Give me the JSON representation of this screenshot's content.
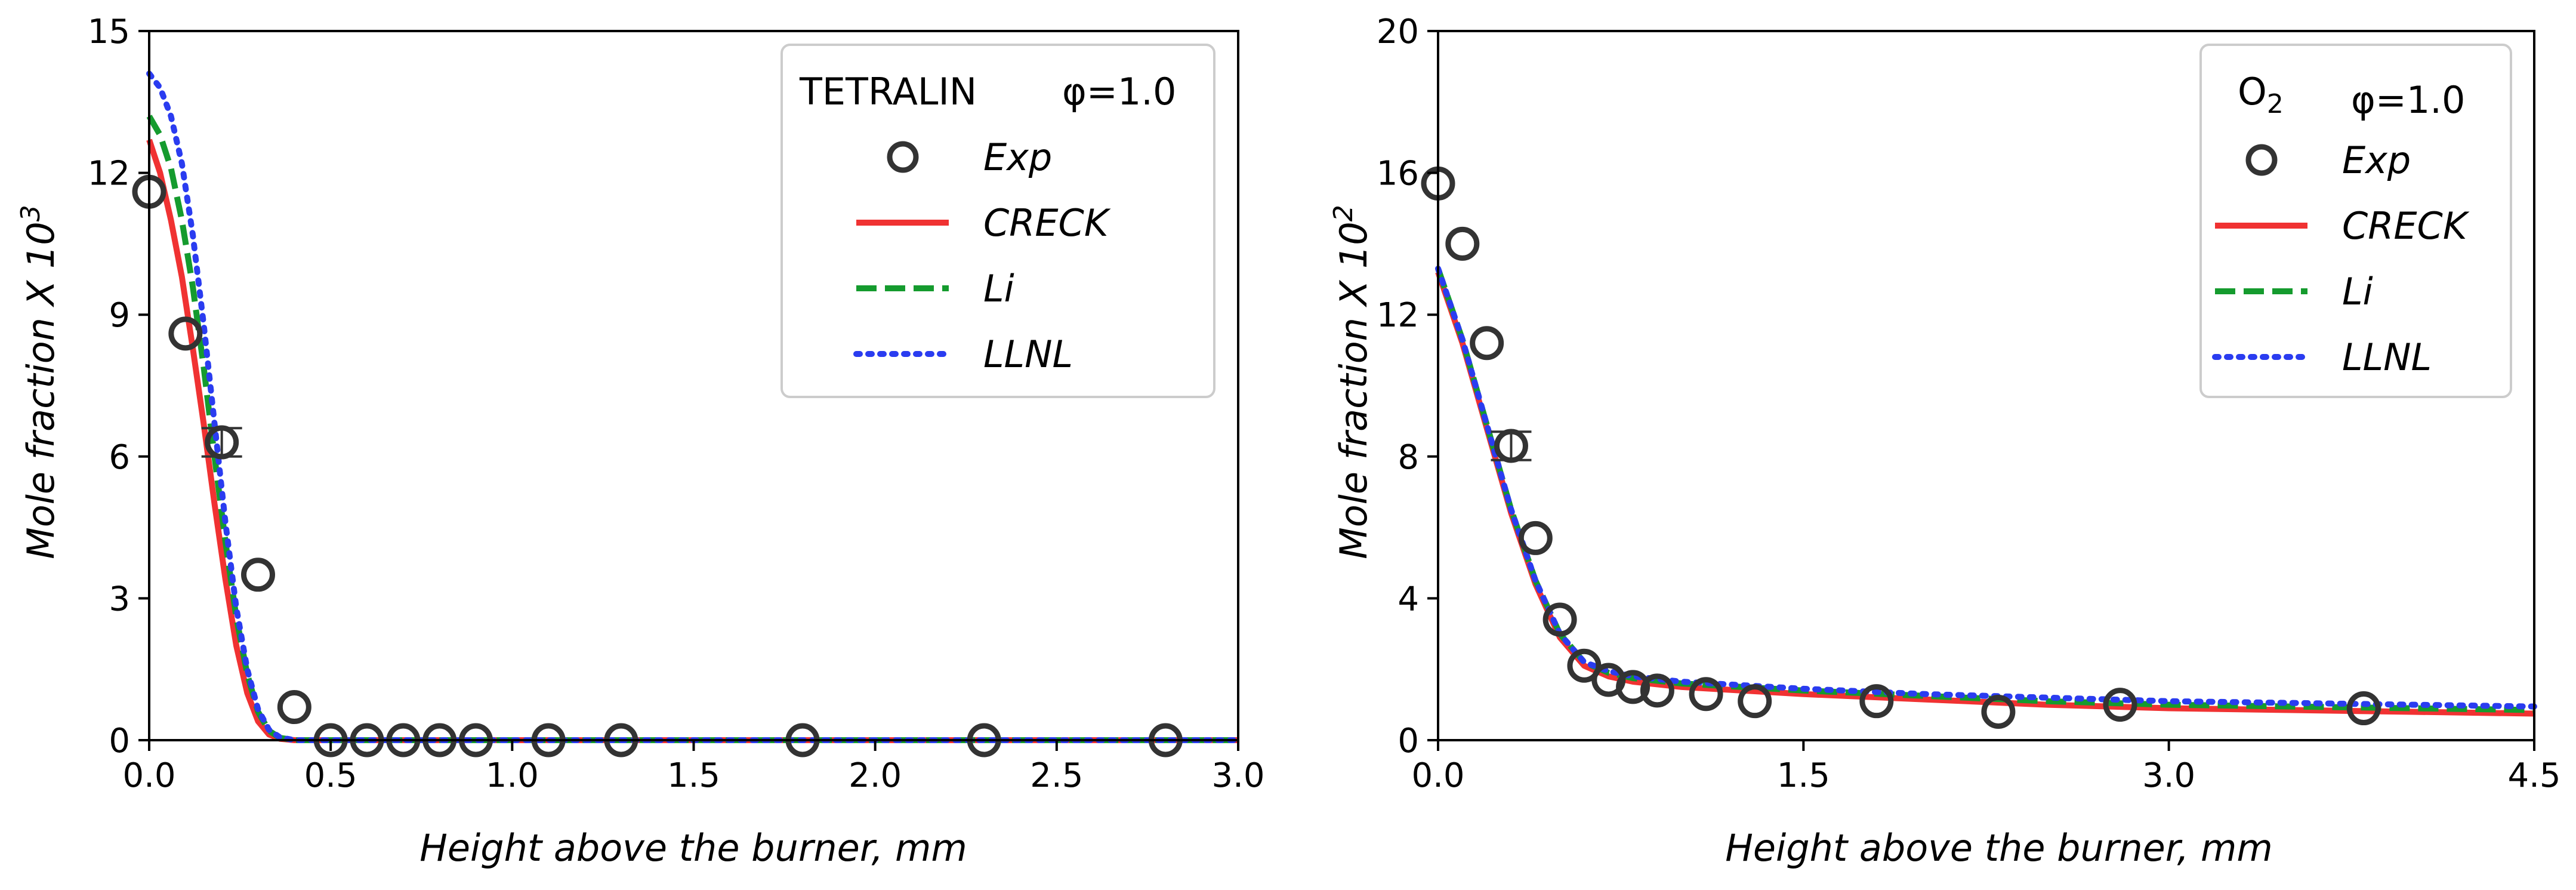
{
  "chart_data": [
    {
      "type": "line",
      "title": "",
      "xlabel": "Height above the burner, mm",
      "ylabel_prefix": "Mole fraction X 10",
      "ylabel_exp": "3",
      "xlim": [
        0,
        3.0
      ],
      "ylim": [
        0,
        15
      ],
      "xticks": [
        0.0,
        0.5,
        1.0,
        1.5,
        2.0,
        2.5,
        3.0
      ],
      "xtick_labels": [
        "0.0",
        "0.5",
        "1.0",
        "1.5",
        "2.0",
        "2.5",
        "3.0"
      ],
      "yticks": [
        0,
        3,
        6,
        9,
        12,
        15
      ],
      "ytick_labels": [
        "0",
        "3",
        "6",
        "9",
        "12",
        "15"
      ],
      "legend": {
        "title_species": "TETRALIN",
        "title_sub": "",
        "title_phi": "φ=1.0",
        "entries": [
          "Exp",
          "CRECK",
          "Li",
          "LLNL"
        ],
        "placement": "top-right"
      },
      "exp": {
        "name": "Exp",
        "x": [
          0.0,
          0.1,
          0.2,
          0.3,
          0.4,
          0.5,
          0.6,
          0.7,
          0.8,
          0.9,
          1.1,
          1.3,
          1.8,
          2.3,
          2.8
        ],
        "y": [
          11.6,
          8.6,
          6.3,
          3.5,
          0.7,
          0.0,
          0.0,
          0.0,
          0.0,
          0.0,
          0.0,
          0.0,
          0.0,
          0.0,
          0.0
        ],
        "errorbar_index": 2,
        "errorbar_low": 6.0,
        "errorbar_high": 6.6
      },
      "series": [
        {
          "name": "CRECK",
          "color": "#f03232",
          "style": "solid",
          "x": [
            0.0,
            0.03,
            0.06,
            0.09,
            0.12,
            0.15,
            0.18,
            0.21,
            0.24,
            0.27,
            0.3,
            0.33,
            0.36,
            0.4,
            0.5,
            0.7,
            1.0,
            1.5,
            2.0,
            2.5,
            3.0
          ],
          "y": [
            12.7,
            12.0,
            11.0,
            9.8,
            8.3,
            6.7,
            5.0,
            3.4,
            2.0,
            1.0,
            0.4,
            0.12,
            0.03,
            0.0,
            0.0,
            0.0,
            0.0,
            0.0,
            0.0,
            0.0,
            0.0
          ]
        },
        {
          "name": "Li",
          "color": "#159b2e",
          "style": "dashed",
          "x": [
            0.0,
            0.03,
            0.06,
            0.09,
            0.12,
            0.15,
            0.18,
            0.21,
            0.24,
            0.27,
            0.3,
            0.33,
            0.36,
            0.4,
            0.5,
            0.7,
            1.0,
            1.5,
            2.0,
            2.5,
            3.0
          ],
          "y": [
            13.2,
            12.8,
            12.1,
            11.0,
            9.6,
            7.9,
            6.0,
            4.2,
            2.6,
            1.4,
            0.6,
            0.2,
            0.05,
            0.0,
            0.0,
            0.0,
            0.0,
            0.0,
            0.0,
            0.0,
            0.0
          ]
        },
        {
          "name": "LLNL",
          "color": "#2a3cf0",
          "style": "dotted",
          "x": [
            0.0,
            0.03,
            0.06,
            0.09,
            0.12,
            0.15,
            0.18,
            0.21,
            0.24,
            0.27,
            0.3,
            0.33,
            0.36,
            0.4,
            0.5,
            0.7,
            1.0,
            1.5,
            2.0,
            2.5,
            3.0
          ],
          "y": [
            14.1,
            13.8,
            13.2,
            12.2,
            10.7,
            8.8,
            6.7,
            4.6,
            2.8,
            1.5,
            0.65,
            0.22,
            0.06,
            0.0,
            0.0,
            0.0,
            0.0,
            0.0,
            0.0,
            0.0,
            0.0
          ]
        }
      ]
    },
    {
      "type": "line",
      "title": "",
      "xlabel": "Height above the burner, mm",
      "ylabel_prefix": "Mole fraction X 10",
      "ylabel_exp": "2",
      "xlim": [
        0,
        4.5
      ],
      "ylim": [
        0,
        20
      ],
      "xticks": [
        0.0,
        1.5,
        3.0,
        4.5
      ],
      "xtick_labels": [
        "0.0",
        "1.5",
        "3.0",
        "4.5"
      ],
      "yticks": [
        0,
        4,
        8,
        12,
        16,
        20
      ],
      "ytick_labels": [
        "0",
        "4",
        "8",
        "12",
        "16",
        "20"
      ],
      "legend": {
        "title_species": "O",
        "title_sub": "2",
        "title_phi": "φ=1.0",
        "entries": [
          "Exp",
          "CRECK",
          "Li",
          "LLNL"
        ],
        "placement": "top-right"
      },
      "exp": {
        "name": "Exp",
        "x": [
          0.0,
          0.1,
          0.2,
          0.3,
          0.4,
          0.5,
          0.6,
          0.7,
          0.8,
          0.9,
          1.1,
          1.3,
          1.8,
          2.3,
          2.8,
          3.8
        ],
        "y": [
          15.7,
          14.0,
          11.2,
          8.3,
          5.7,
          3.4,
          2.1,
          1.7,
          1.5,
          1.4,
          1.3,
          1.1,
          1.1,
          0.8,
          1.0,
          0.9
        ],
        "errorbar_index": 3,
        "errorbar_low": 7.9,
        "errorbar_high": 8.7
      },
      "series": [
        {
          "name": "CRECK",
          "color": "#f03232",
          "style": "solid",
          "x": [
            0.0,
            0.1,
            0.2,
            0.3,
            0.4,
            0.5,
            0.6,
            0.7,
            0.8,
            1.0,
            1.5,
            2.0,
            2.5,
            3.0,
            3.5,
            4.0,
            4.5
          ],
          "y": [
            13.2,
            11.2,
            8.8,
            6.4,
            4.4,
            2.9,
            2.1,
            1.8,
            1.65,
            1.5,
            1.3,
            1.15,
            1.0,
            0.9,
            0.85,
            0.8,
            0.75
          ]
        },
        {
          "name": "Li",
          "color": "#159b2e",
          "style": "dashed",
          "x": [
            0.0,
            0.1,
            0.2,
            0.3,
            0.4,
            0.5,
            0.6,
            0.7,
            0.8,
            1.0,
            1.5,
            2.0,
            2.5,
            3.0,
            3.5,
            4.0,
            4.5
          ],
          "y": [
            13.3,
            11.3,
            8.9,
            6.5,
            4.5,
            3.0,
            2.2,
            1.9,
            1.75,
            1.6,
            1.4,
            1.25,
            1.1,
            1.0,
            0.95,
            0.9,
            0.85
          ]
        },
        {
          "name": "LLNL",
          "color": "#2a3cf0",
          "style": "dotted",
          "x": [
            0.0,
            0.1,
            0.2,
            0.3,
            0.4,
            0.5,
            0.6,
            0.7,
            0.8,
            1.0,
            1.5,
            2.0,
            2.5,
            3.0,
            3.5,
            4.0,
            4.5
          ],
          "y": [
            13.3,
            11.3,
            8.9,
            6.5,
            4.5,
            3.0,
            2.2,
            1.95,
            1.8,
            1.65,
            1.45,
            1.3,
            1.2,
            1.1,
            1.05,
            1.0,
            0.95
          ]
        }
      ]
    }
  ]
}
